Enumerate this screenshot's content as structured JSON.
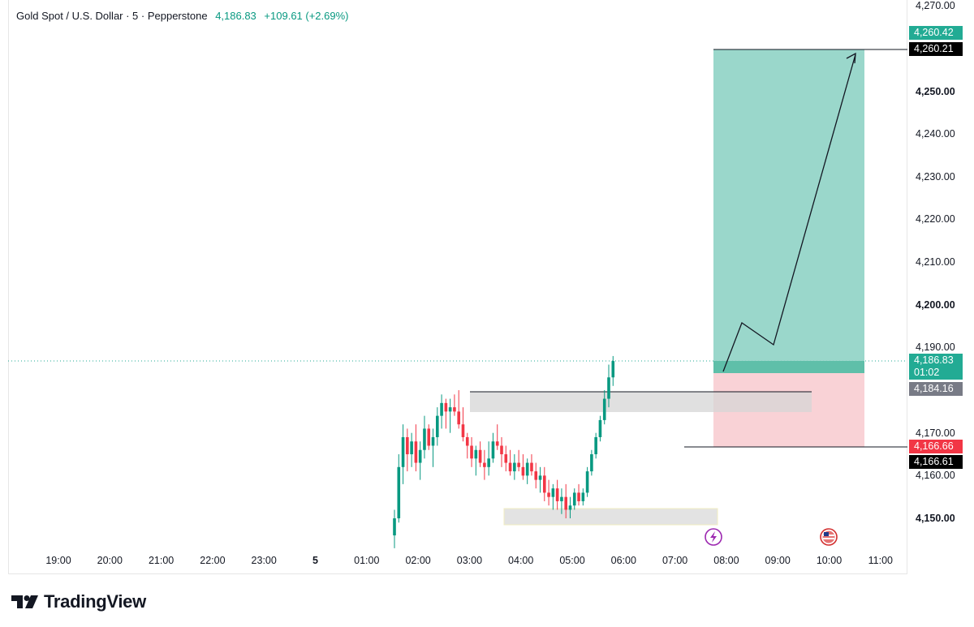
{
  "legend": {
    "symbol": "Gold Spot / U.S. Dollar · 5 · Pepperstone",
    "last_price": "4,186.83",
    "change": "+109.61 (+2.69%)"
  },
  "price_axis": {
    "labels": [
      {
        "text": "4,270.00",
        "value": 4270,
        "bold": false
      },
      {
        "text": "4,250.00",
        "value": 4250,
        "bold": true
      },
      {
        "text": "4,240.00",
        "value": 4240,
        "bold": false
      },
      {
        "text": "4,230.00",
        "value": 4230,
        "bold": false
      },
      {
        "text": "4,220.00",
        "value": 4220,
        "bold": false
      },
      {
        "text": "4,210.00",
        "value": 4210,
        "bold": false
      },
      {
        "text": "4,200.00",
        "value": 4200,
        "bold": true
      },
      {
        "text": "4,190.00",
        "value": 4190,
        "bold": false
      },
      {
        "text": "4,170.00",
        "value": 4170,
        "bold": false
      },
      {
        "text": "4,160.00",
        "value": 4160,
        "bold": false
      },
      {
        "text": "4,150.00",
        "value": 4150,
        "bold": true
      }
    ],
    "tags": [
      {
        "text": "4,260.42",
        "value": 4260.42,
        "color": "#22ab94"
      },
      {
        "text": "4,260.21",
        "value": 4260.21,
        "color": "#000000"
      },
      {
        "text": "4,186.83",
        "value": 4186.83,
        "color": "#22ab94",
        "sub": "01:02"
      },
      {
        "text": "4,184.16",
        "value": 4184.16,
        "color": "#787b86"
      },
      {
        "text": "4,166.66",
        "value": 4166.66,
        "color": "#f23645"
      },
      {
        "text": "4,166.61",
        "value": 4166.61,
        "color": "#000000"
      }
    ]
  },
  "time_axis": [
    {
      "text": "19:00",
      "bold": false
    },
    {
      "text": "20:00",
      "bold": false
    },
    {
      "text": "21:00",
      "bold": false
    },
    {
      "text": "22:00",
      "bold": false
    },
    {
      "text": "23:00",
      "bold": false
    },
    {
      "text": "5",
      "bold": true
    },
    {
      "text": "01:00",
      "bold": false
    },
    {
      "text": "02:00",
      "bold": false
    },
    {
      "text": "03:00",
      "bold": false
    },
    {
      "text": "04:00",
      "bold": false
    },
    {
      "text": "05:00",
      "bold": false
    },
    {
      "text": "06:00",
      "bold": false
    },
    {
      "text": "07:00",
      "bold": false
    },
    {
      "text": "08:00",
      "bold": false
    },
    {
      "text": "09:00",
      "bold": false
    },
    {
      "text": "10:00",
      "bold": false
    },
    {
      "text": "11:00",
      "bold": false
    }
  ],
  "colors": {
    "up": "#089981",
    "down": "#f23645",
    "target_zone": "#8fd3c5",
    "stop_zone": "#f9d0d4",
    "supply_zone": "#e0e0e0"
  },
  "position": {
    "entry": 4184.16,
    "target": 4260.21,
    "stop": 4166.61
  },
  "chart_data": {
    "type": "candlestick",
    "interval_minutes": 5,
    "ohlc": [
      [
        4146,
        4152,
        4143,
        4150
      ],
      [
        4150,
        4165,
        4149,
        4162
      ],
      [
        4162,
        4172,
        4158,
        4169
      ],
      [
        4169,
        4171,
        4161,
        4165
      ],
      [
        4165,
        4170,
        4162,
        4168
      ],
      [
        4168,
        4172,
        4161,
        4163
      ],
      [
        4163,
        4168,
        4159,
        4166
      ],
      [
        4166,
        4174,
        4164,
        4171
      ],
      [
        4171,
        4172,
        4166,
        4167
      ],
      [
        4167,
        4171,
        4162,
        4169
      ],
      [
        4169,
        4176,
        4167,
        4174
      ],
      [
        4174,
        4179,
        4171,
        4177
      ],
      [
        4177,
        4178,
        4171,
        4175
      ],
      [
        4175,
        4178,
        4170,
        4176
      ],
      [
        4176,
        4179,
        4174,
        4175
      ],
      [
        4175,
        4180,
        4171,
        4172
      ],
      [
        4172,
        4176,
        4168,
        4169
      ],
      [
        4169,
        4170,
        4164,
        4167
      ],
      [
        4167,
        4169,
        4162,
        4164
      ],
      [
        4164,
        4167,
        4160,
        4166
      ],
      [
        4166,
        4168,
        4162,
        4163
      ],
      [
        4163,
        4166,
        4159,
        4162
      ],
      [
        4162,
        4168,
        4160,
        4164
      ],
      [
        4164,
        4170,
        4163,
        4168
      ],
      [
        4168,
        4172,
        4166,
        4167
      ],
      [
        4167,
        4169,
        4162,
        4165
      ],
      [
        4165,
        4167,
        4161,
        4163
      ],
      [
        4163,
        4166,
        4160,
        4161
      ],
      [
        4161,
        4165,
        4159,
        4163
      ],
      [
        4163,
        4166,
        4161,
        4162
      ],
      [
        4162,
        4165,
        4159,
        4160
      ],
      [
        4160,
        4164,
        4158,
        4163
      ],
      [
        4163,
        4165,
        4160,
        4161
      ],
      [
        4161,
        4163,
        4157,
        4159
      ],
      [
        4159,
        4162,
        4156,
        4160
      ],
      [
        4160,
        4162,
        4154,
        4156
      ],
      [
        4156,
        4159,
        4153,
        4155
      ],
      [
        4155,
        4158,
        4152,
        4157
      ],
      [
        4157,
        4159,
        4152,
        4154
      ],
      [
        4154,
        4157,
        4151,
        4155
      ],
      [
        4155,
        4158,
        4150,
        4152
      ],
      [
        4152,
        4155,
        4150,
        4153
      ],
      [
        4153,
        4157,
        4152,
        4156
      ],
      [
        4156,
        4158,
        4153,
        4154
      ],
      [
        4154,
        4157,
        4153,
        4156
      ],
      [
        4156,
        4162,
        4155,
        4161
      ],
      [
        4161,
        4166,
        4160,
        4165
      ],
      [
        4165,
        4170,
        4164,
        4169
      ],
      [
        4169,
        4174,
        4168,
        4173
      ],
      [
        4173,
        4180,
        4172,
        4178
      ],
      [
        4178,
        4186,
        4176,
        4183
      ],
      [
        4183,
        4188,
        4181,
        4186.83
      ]
    ]
  }
}
